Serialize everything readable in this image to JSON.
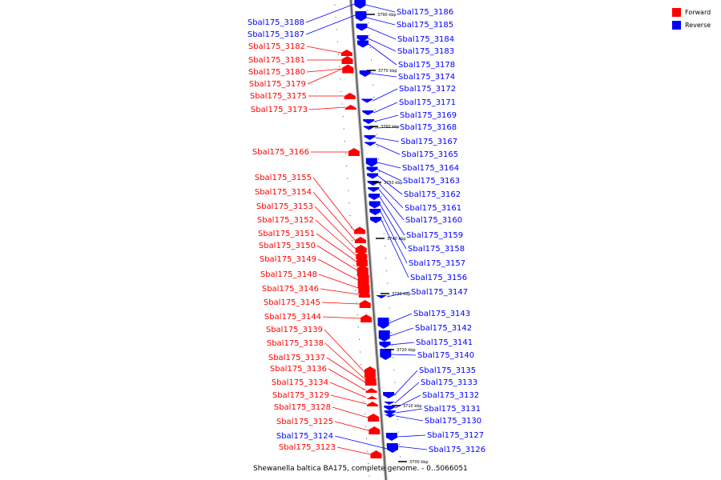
{
  "caption": "Shewanella baltica BA175, complete genome. - 0..5066051",
  "legend": [
    {
      "label": "Forward",
      "color": "#ff0000"
    },
    {
      "label": "Reverse",
      "color": "#0000ff"
    }
  ],
  "colors": {
    "forward": "#ff0000",
    "reverse": "#0000ff",
    "backbone": "#888888"
  },
  "kbp_ticks": [
    "3790 kbp",
    "3770 kbp",
    "3760 kbp",
    "3750 kbp",
    "3740 kbp",
    "3730 kbp",
    "3720 kbp",
    "3710 kbp",
    "3700 kbp"
  ],
  "forward_genes": [
    "Sbal175_3182",
    "Sbal175_3181",
    "Sbal175_3180",
    "Sbal175_3179",
    "Sbal175_3175",
    "Sbal175_3173",
    "Sbal175_3166",
    "Sbal175_3155",
    "Sbal175_3154",
    "Sbal175_3153",
    "Sbal175_3152",
    "Sbal175_3151",
    "Sbal175_3150",
    "Sbal175_3149",
    "Sbal175_3148",
    "Sbal175_3146",
    "Sbal175_3145",
    "Sbal175_3144",
    "Sbal175_3139",
    "Sbal175_3138",
    "Sbal175_3137",
    "Sbal175_3136",
    "Sbal175_3134",
    "Sbal175_3129",
    "Sbal175_3128",
    "Sbal175_3125",
    "Sbal175_3123"
  ],
  "reverse_genes_left": [
    "Sbal175_3188",
    "Sbal175_3187",
    "Sbal175_3124"
  ],
  "reverse_genes_right": [
    "Sbal175_3186",
    "Sbal175_3185",
    "Sbal175_3184",
    "Sbal175_3183",
    "Sbal175_3178",
    "Sbal175_3174",
    "Sbal175_3172",
    "Sbal175_3171",
    "Sbal175_3169",
    "Sbal175_3168",
    "Sbal175_3167",
    "Sbal175_3165",
    "Sbal175_3164",
    "Sbal175_3163",
    "Sbal175_3162",
    "Sbal175_3161",
    "Sbal175_3160",
    "Sbal175_3159",
    "Sbal175_3158",
    "Sbal175_3157",
    "Sbal175_3156",
    "Sbal175_3147",
    "Sbal175_3143",
    "Sbal175_3142",
    "Sbal175_3141",
    "Sbal175_3140",
    "Sbal175_3135",
    "Sbal175_3133",
    "Sbal175_3132",
    "Sbal175_3131",
    "Sbal175_3130",
    "Sbal175_3127",
    "Sbal175_3126"
  ]
}
